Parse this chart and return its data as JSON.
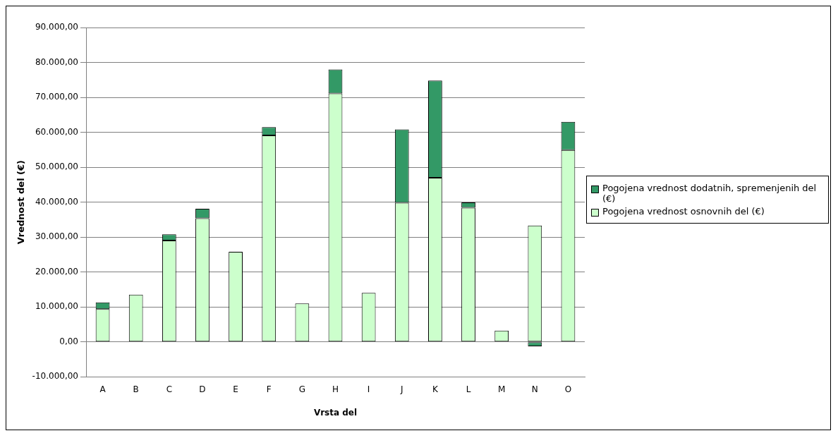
{
  "chart_data": {
    "type": "bar",
    "stacked": true,
    "xlabel": "Vrsta del",
    "ylabel": "Vrednost del (€)",
    "categories": [
      "A",
      "B",
      "C",
      "D",
      "E",
      "F",
      "G",
      "H",
      "I",
      "J",
      "K",
      "L",
      "M",
      "N",
      "O"
    ],
    "series": [
      {
        "name": "Pogojena vrednost osnovnih del (€)",
        "color": "#ccffcc",
        "values": [
          9400,
          13500,
          29000,
          35400,
          25800,
          59100,
          11000,
          71100,
          14000,
          39800,
          47000,
          38400,
          3200,
          33300,
          54900
        ]
      },
      {
        "name": "Pogojena vrednost dodatnih, spremenjenih del (€)",
        "color": "#339966",
        "values": [
          1900,
          null,
          1800,
          2700,
          null,
          2400,
          null,
          6900,
          null,
          21000,
          27800,
          1500,
          null,
          -1300,
          8100
        ]
      }
    ],
    "ylim": [
      -10000,
      90000
    ],
    "yticks": [
      {
        "value": -10000,
        "label": "-10.000,00"
      },
      {
        "value": 0,
        "label": "0,00"
      },
      {
        "value": 10000,
        "label": "10.000,00"
      },
      {
        "value": 20000,
        "label": "20.000,00"
      },
      {
        "value": 30000,
        "label": "30.000,00"
      },
      {
        "value": 40000,
        "label": "40.000,00"
      },
      {
        "value": 50000,
        "label": "50.000,00"
      },
      {
        "value": 60000,
        "label": "60.000,00"
      },
      {
        "value": 70000,
        "label": "70.000,00"
      },
      {
        "value": 80000,
        "label": "80.000,00"
      },
      {
        "value": 90000,
        "label": "90.000,00"
      }
    ],
    "grid": "y",
    "legend": "right"
  }
}
